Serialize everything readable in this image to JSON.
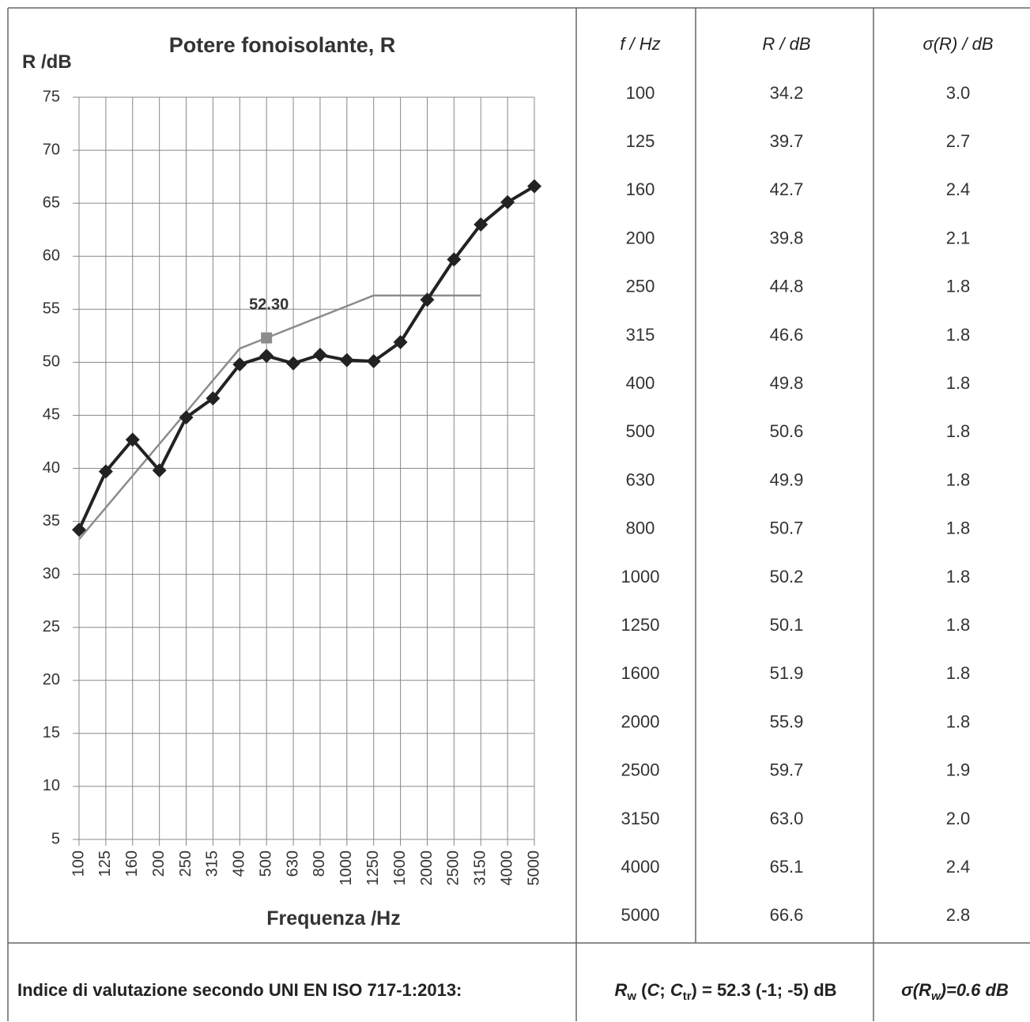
{
  "chart_data": {
    "type": "line",
    "title": "Potere fonoisolante, R",
    "ylabel": "R /dB",
    "xlabel": "Frequenza /Hz",
    "categories": [
      "100",
      "125",
      "160",
      "200",
      "250",
      "315",
      "400",
      "500",
      "630",
      "800",
      "1000",
      "1250",
      "1600",
      "2000",
      "2500",
      "3150",
      "4000",
      "5000"
    ],
    "series": [
      {
        "color": "#222222",
        "values": [
          34.2,
          39.7,
          42.7,
          39.8,
          44.8,
          46.6,
          49.8,
          50.6,
          49.9,
          50.7,
          50.2,
          50.1,
          51.9,
          55.9,
          59.7,
          63.0,
          65.1,
          66.6
        ]
      },
      {
        "color": "#8c8c8c",
        "values": [
          33.3,
          36.3,
          39.3,
          42.3,
          45.3,
          48.3,
          51.3,
          52.3,
          53.3,
          54.3,
          55.3,
          56.3,
          56.3,
          56.3,
          56.3,
          56.3,
          null,
          null
        ]
      }
    ],
    "annotation": {
      "text": "52.30",
      "x": "500",
      "y": 52.3
    },
    "ylim": [
      5,
      75
    ],
    "yticks": [
      5,
      10,
      15,
      20,
      25,
      30,
      35,
      40,
      45,
      50,
      55,
      60,
      65,
      70,
      75
    ],
    "grid": true
  },
  "table": {
    "headers": [
      "f / Hz",
      "R / dB",
      "σ(R) / dB"
    ],
    "rows": [
      [
        "100",
        "34.2",
        "3.0"
      ],
      [
        "125",
        "39.7",
        "2.7"
      ],
      [
        "160",
        "42.7",
        "2.4"
      ],
      [
        "200",
        "39.8",
        "2.1"
      ],
      [
        "250",
        "44.8",
        "1.8"
      ],
      [
        "315",
        "46.6",
        "1.8"
      ],
      [
        "400",
        "49.8",
        "1.8"
      ],
      [
        "500",
        "50.6",
        "1.8"
      ],
      [
        "630",
        "49.9",
        "1.8"
      ],
      [
        "800",
        "50.7",
        "1.8"
      ],
      [
        "1000",
        "50.2",
        "1.8"
      ],
      [
        "1250",
        "50.1",
        "1.8"
      ],
      [
        "1600",
        "51.9",
        "1.8"
      ],
      [
        "2000",
        "55.9",
        "1.8"
      ],
      [
        "2500",
        "59.7",
        "1.9"
      ],
      [
        "3150",
        "63.0",
        "2.0"
      ],
      [
        "4000",
        "65.1",
        "2.4"
      ],
      [
        "5000",
        "66.6",
        "2.8"
      ]
    ]
  },
  "footer": {
    "label": "Indice di valutazione secondo UNI EN ISO 717-1:2013:",
    "rating": [
      "R",
      "w",
      " (",
      "C",
      "; ",
      "C",
      "tr",
      ") = 52.3 (-1; -5) dB"
    ],
    "uncertainty": [
      "σ(R",
      "w",
      ")=0.6 dB"
    ]
  }
}
